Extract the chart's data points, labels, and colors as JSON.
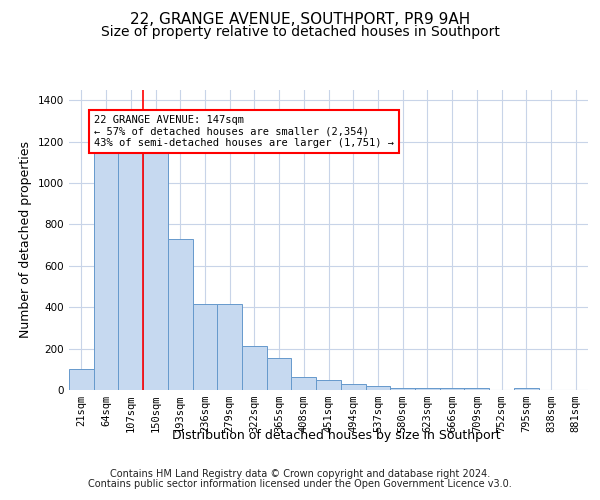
{
  "title": "22, GRANGE AVENUE, SOUTHPORT, PR9 9AH",
  "subtitle": "Size of property relative to detached houses in Southport",
  "xlabel": "Distribution of detached houses by size in Southport",
  "ylabel": "Number of detached properties",
  "categories": [
    "21sqm",
    "64sqm",
    "107sqm",
    "150sqm",
    "193sqm",
    "236sqm",
    "279sqm",
    "322sqm",
    "365sqm",
    "408sqm",
    "451sqm",
    "494sqm",
    "537sqm",
    "580sqm",
    "623sqm",
    "666sqm",
    "709sqm",
    "752sqm",
    "795sqm",
    "838sqm",
    "881sqm"
  ],
  "values": [
    100,
    1170,
    1170,
    1160,
    730,
    415,
    415,
    215,
    155,
    65,
    48,
    28,
    20,
    12,
    12,
    12,
    12,
    0,
    10,
    0,
    0
  ],
  "bar_color": "#c6d9f0",
  "bar_edge_color": "#6699cc",
  "annotation_box_text": "22 GRANGE AVENUE: 147sqm\n← 57% of detached houses are smaller (2,354)\n43% of semi-detached houses are larger (1,751) →",
  "red_line_bar_index": 3,
  "ylim": [
    0,
    1450
  ],
  "yticks": [
    0,
    200,
    400,
    600,
    800,
    1000,
    1200,
    1400
  ],
  "footer1": "Contains HM Land Registry data © Crown copyright and database right 2024.",
  "footer2": "Contains public sector information licensed under the Open Government Licence v3.0.",
  "bg_color": "#ffffff",
  "grid_color": "#c8d4e8",
  "title_fontsize": 11,
  "subtitle_fontsize": 10,
  "label_fontsize": 9,
  "tick_fontsize": 7.5,
  "footer_fontsize": 7
}
